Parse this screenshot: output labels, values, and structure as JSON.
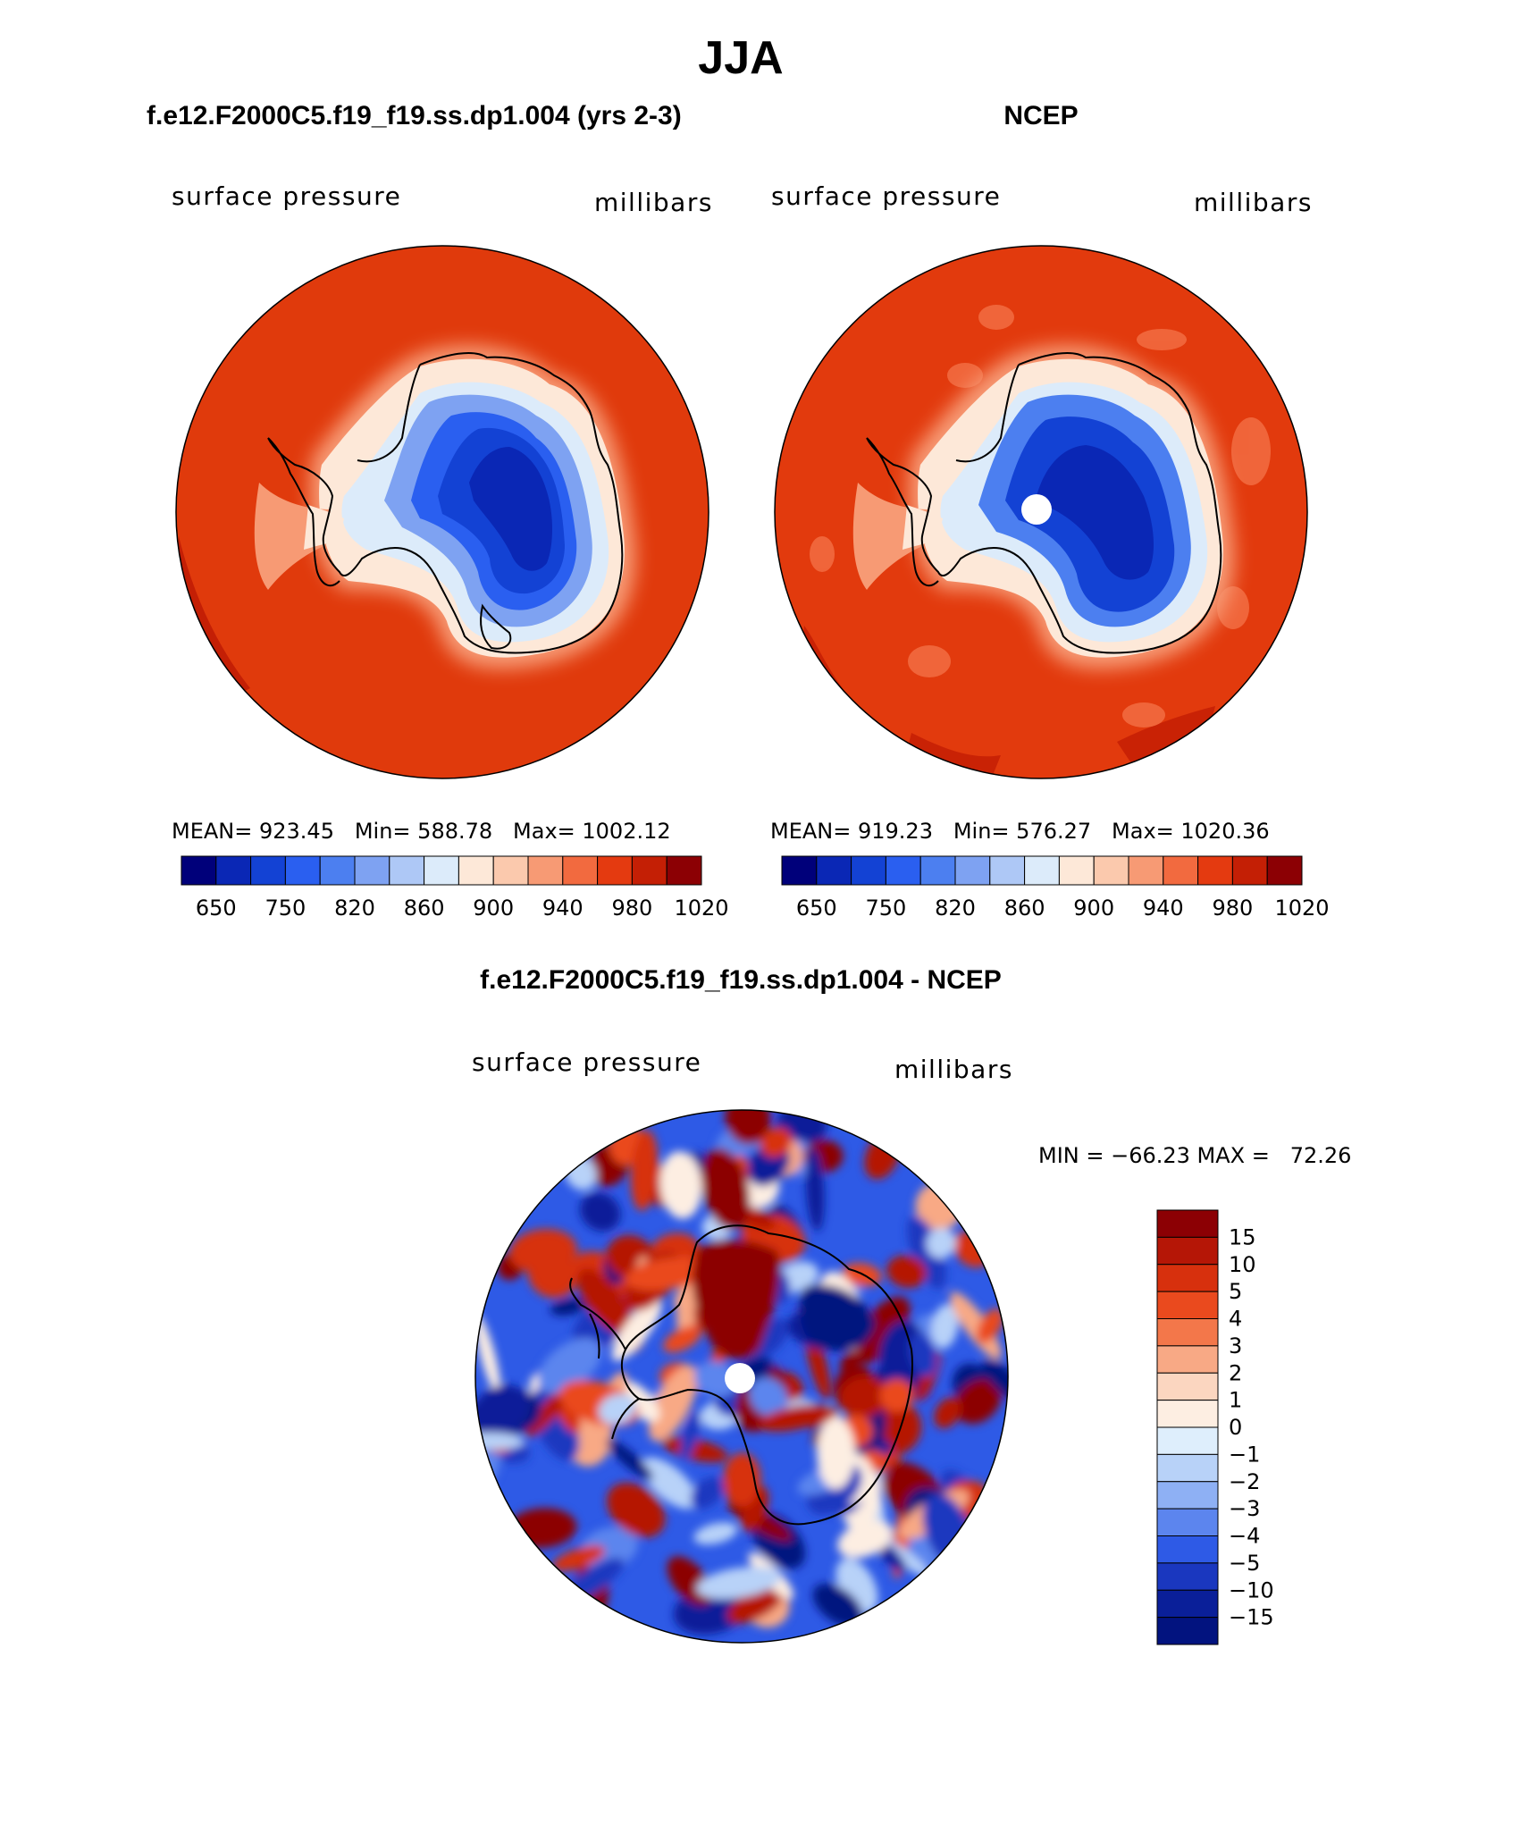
{
  "title": "JJA",
  "panels": [
    {
      "header": "f.e12.F2000C5.f19_f19.ss.dp1.004 (yrs 2-3)",
      "variable": "surface pressure",
      "units": "millibars",
      "stats": "MEAN= 923.45   Min= 588.78   Max= 1002.12",
      "colorbar_labels": [
        "650",
        "750",
        "820",
        "860",
        "900",
        "940",
        "980",
        "1020"
      ]
    },
    {
      "header": "NCEP",
      "variable": "surface pressure",
      "units": "millibars",
      "stats": "MEAN= 919.23   Min= 576.27   Max= 1020.36",
      "colorbar_labels": [
        "650",
        "750",
        "820",
        "860",
        "900",
        "940",
        "980",
        "1020"
      ]
    }
  ],
  "difference": {
    "header": "f.e12.F2000C5.f19_f19.ss.dp1.004 - NCEP",
    "variable": "surface pressure",
    "units": "millibars",
    "minmax": "MIN = −66.23 MAX =   72.26",
    "colorbar_labels": [
      "15",
      "10",
      "5",
      "4",
      "3",
      "2",
      "1",
      "0",
      "−1",
      "−2",
      "−3",
      "−4",
      "−5",
      "−10",
      "−15"
    ]
  },
  "colors": {
    "abs_scale": [
      "#00007a",
      "#0a27b5",
      "#1342d4",
      "#2a5ff0",
      "#4c7ff0",
      "#7ea2f2",
      "#aec8f6",
      "#dcebfa",
      "#fde8d8",
      "#fbc9ad",
      "#f79a74",
      "#f26a3f",
      "#e43a10",
      "#c41f05",
      "#8c0004"
    ],
    "diff_scale": [
      "#8c0004",
      "#b51606",
      "#d7300d",
      "#ea4a1e",
      "#f3774a",
      "#f8a985",
      "#fbd6c0",
      "#fdeee2",
      "#deeefc",
      "#b8d2f8",
      "#8eb0f4",
      "#5c85ee",
      "#2e5ae6",
      "#1a37bf",
      "#0a1f99",
      "#02137f"
    ],
    "ocean_model": "#e03a0c",
    "ocean_ncep": "#e23a0d"
  }
}
